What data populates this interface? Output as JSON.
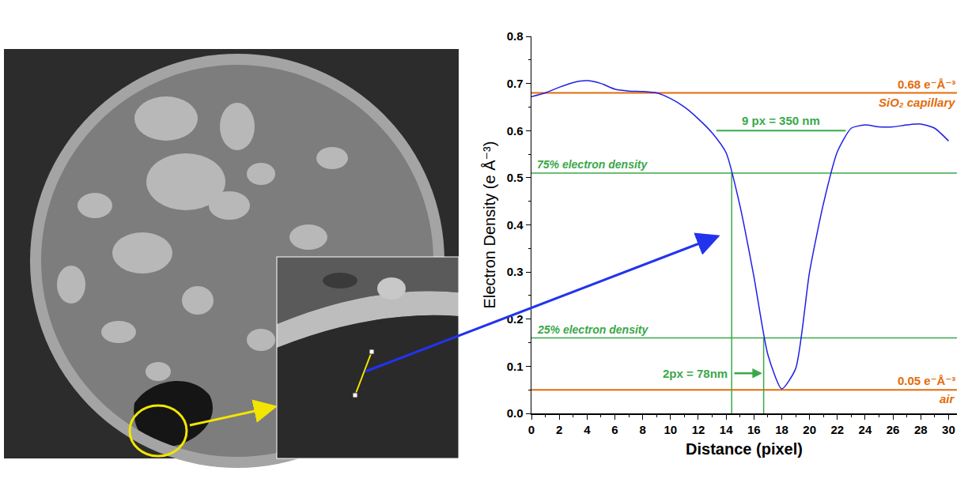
{
  "chart_data": {
    "type": "line",
    "x_label": "Distance (pixel)",
    "y_label": "Electron Density (e Å⁻³)",
    "x": [
      0,
      1,
      2,
      3,
      4,
      5,
      6,
      7,
      8,
      9,
      10,
      11,
      12,
      13,
      14,
      15,
      16,
      17,
      18,
      19,
      20,
      21,
      22,
      23,
      24,
      25,
      26,
      27,
      28,
      29,
      30
    ],
    "values": [
      0.672,
      0.68,
      0.692,
      0.702,
      0.706,
      0.7,
      0.688,
      0.684,
      0.683,
      0.68,
      0.668,
      0.65,
      0.625,
      0.595,
      0.553,
      0.44,
      0.29,
      0.125,
      0.052,
      0.095,
      0.3,
      0.445,
      0.555,
      0.605,
      0.612,
      0.608,
      0.608,
      0.612,
      0.614,
      0.605,
      0.578
    ],
    "color": "#1f1fe6",
    "xlim": [
      0,
      30.6
    ],
    "ylim": [
      0,
      0.8
    ],
    "xticks": [
      0,
      2,
      4,
      6,
      8,
      10,
      12,
      14,
      16,
      18,
      20,
      22,
      24,
      26,
      28,
      30
    ],
    "yticks": [
      {
        "value": 0,
        "label": "0.0"
      },
      0.1,
      0.2,
      0.3,
      0.4,
      0.5,
      0.6,
      0.7,
      0.8
    ],
    "grid": false,
    "reference_lines": [
      {
        "y": 0.68,
        "value_label": "0.68 e⁻Å⁻³",
        "label": "SiO₂ capillary",
        "color": "#e46c0a"
      },
      {
        "y": 0.05,
        "value_label": "0.05 e⁻Å⁻³",
        "label": "air",
        "color": "#e46c0a"
      }
    ],
    "thresholds": [
      {
        "label": "75% electron density",
        "y": 0.51,
        "x": 14.4,
        "color": "#3aa84a"
      },
      {
        "label": "25% electron density",
        "y": 0.16,
        "x": 16.7,
        "color": "#3aa84a"
      }
    ],
    "widths": [
      {
        "label": "9 px = 350 nm",
        "x0": 13.3,
        "x1": 22.6,
        "y": 0.6,
        "color": "#3aa84a",
        "marker": "line"
      },
      {
        "label": "2px = 78nm",
        "x0": 14.4,
        "x1": 16.7,
        "y": 0.085,
        "color": "#3aa84a",
        "marker": "arrow"
      }
    ]
  }
}
